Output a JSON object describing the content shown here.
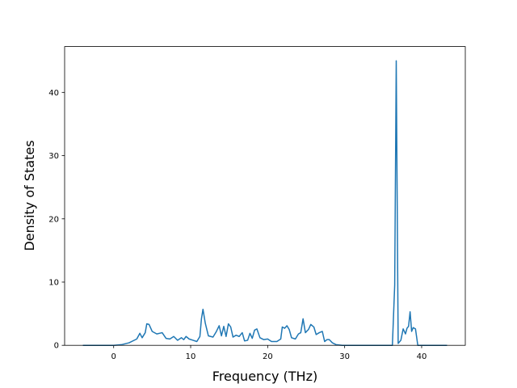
{
  "chart_data": {
    "type": "line",
    "xlabel": "Frequency (THz)",
    "ylabel": "Density of States",
    "x": [
      -4,
      -1,
      0,
      1,
      2,
      3,
      3.4,
      3.7,
      4.1,
      4.3,
      4.6,
      5.0,
      5.6,
      6.3,
      6.8,
      7.3,
      7.8,
      8.3,
      8.8,
      9.1,
      9.4,
      9.8,
      10.3,
      10.8,
      11.2,
      11.4,
      11.6,
      11.9,
      12.3,
      12.9,
      13.3,
      13.7,
      14.0,
      14.3,
      14.6,
      14.9,
      15.2,
      15.5,
      15.9,
      16.3,
      16.7,
      17.0,
      17.4,
      17.7,
      18.0,
      18.3,
      18.6,
      19.0,
      19.5,
      20.0,
      20.5,
      21.2,
      21.7,
      21.9,
      22.2,
      22.5,
      22.8,
      23.1,
      23.6,
      24.0,
      24.3,
      24.6,
      24.9,
      25.3,
      25.6,
      26.0,
      26.3,
      26.7,
      27.1,
      27.4,
      27.7,
      28.0,
      28.4,
      28.9,
      29.7,
      35,
      36.2,
      36.5,
      36.7,
      36.95,
      37.3,
      37.6,
      37.9,
      38.1,
      38.3,
      38.5,
      38.7,
      38.9,
      39.2,
      39.5,
      43.3
    ],
    "series": [
      {
        "color": "#1f77b4",
        "values": [
          0,
          0,
          0,
          0.1,
          0.4,
          1.0,
          1.9,
          1.2,
          2.0,
          3.4,
          3.3,
          2.2,
          1.8,
          2.0,
          1.1,
          1.0,
          1.4,
          0.8,
          1.2,
          0.9,
          1.4,
          1.0,
          0.8,
          0.6,
          1.4,
          4.2,
          5.7,
          3.5,
          1.5,
          1.3,
          2.1,
          3.1,
          1.5,
          3.0,
          1.4,
          3.4,
          2.9,
          1.3,
          1.6,
          1.4,
          2.0,
          0.7,
          0.8,
          1.9,
          1.1,
          2.4,
          2.6,
          1.2,
          0.9,
          1.0,
          0.6,
          0.6,
          1.0,
          2.9,
          2.7,
          3.1,
          2.5,
          1.2,
          1.0,
          1.8,
          2.0,
          4.2,
          2.0,
          2.5,
          3.3,
          2.9,
          1.7,
          2.0,
          2.2,
          0.6,
          0.9,
          0.9,
          0.4,
          0.1,
          0,
          0,
          0,
          9.5,
          45.0,
          0.3,
          0.8,
          2.6,
          1.8,
          2.7,
          3.0,
          5.3,
          2.2,
          2.8,
          2.6,
          0,
          0
        ]
      }
    ],
    "xlim": [
      -6.37,
      45.67
    ],
    "xticks": [
      0,
      10,
      20,
      30,
      40
    ],
    "ylim": [
      0,
      47.25
    ],
    "yticks": [
      0,
      10,
      20,
      30,
      40
    ]
  }
}
